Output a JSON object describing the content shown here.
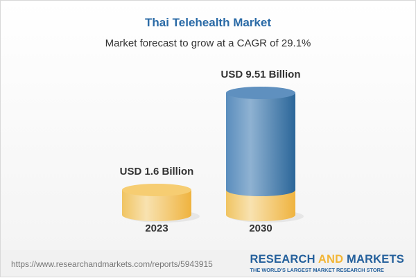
{
  "chart_data": {
    "type": "bar",
    "style": "3d-cylinder",
    "title": "Thai Telehealth Market",
    "subtitle": "Market forecast to grow at a CAGR of 29.1%",
    "categories": [
      "2023",
      "2030"
    ],
    "values": [
      1.6,
      9.51
    ],
    "unit": "USD Billion",
    "data_labels": [
      "USD 1.6 Billion",
      "USD 9.51 Billion"
    ],
    "colors": {
      "base": "#f2c45c",
      "growth": "#4f86b8"
    }
  },
  "footer": {
    "url": "https://www.researchandmarkets.com/reports/5943915",
    "logo_part1": "RESEARCH ",
    "logo_part2": "AND",
    "logo_part3": " MARKETS",
    "tagline": "THE WORLD'S LARGEST MARKET RESEARCH STORE"
  }
}
